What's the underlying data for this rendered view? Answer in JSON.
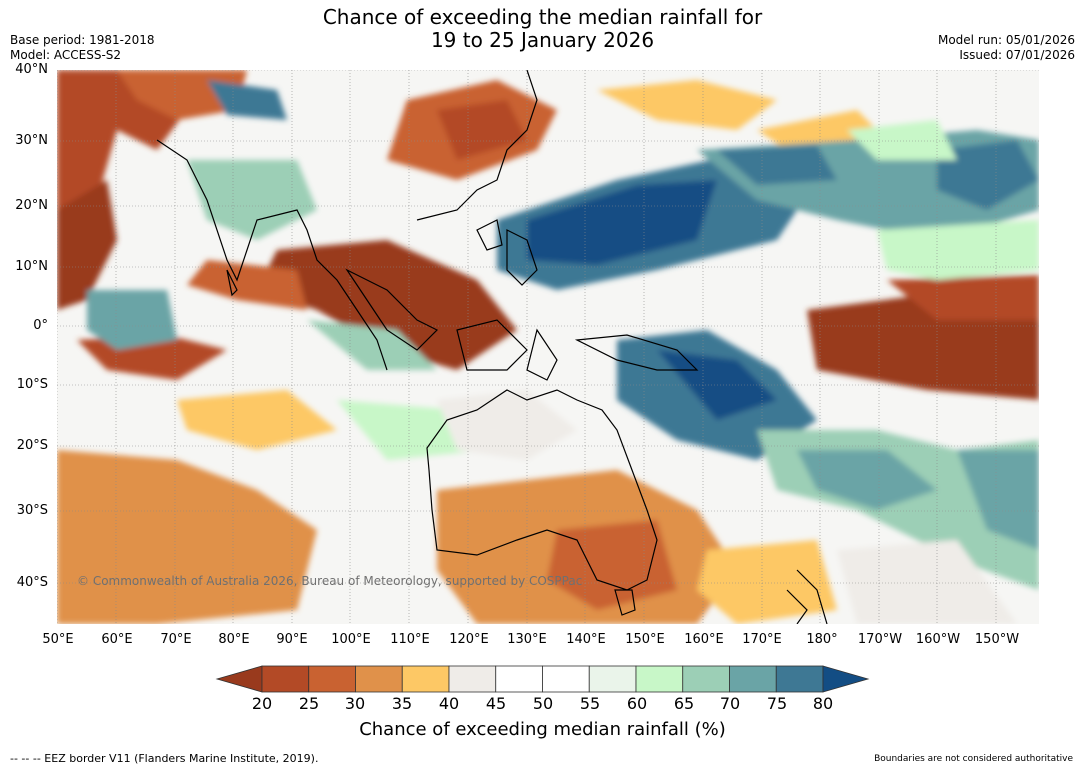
{
  "title": {
    "line1": "Chance of exceeding the median rainfall for",
    "line2": "19 to 25 January 2026"
  },
  "meta": {
    "base_period": "Base period: 1981-2018",
    "model": "Model: ACCESS-S2",
    "model_run": "Model run: 05/01/2026",
    "issued": "Issued: 07/01/2026"
  },
  "map": {
    "lat_labels": [
      "40°N",
      "30°N",
      "20°N",
      "10°N",
      "0°",
      "10°S",
      "20°S",
      "30°S",
      "40°S"
    ],
    "lon_labels": [
      "50°E",
      "60°E",
      "70°E",
      "80°E",
      "90°E",
      "100°E",
      "110°E",
      "120°E",
      "130°E",
      "140°E",
      "150°E",
      "160°E",
      "170°E",
      "180°",
      "170°W",
      "160°W",
      "150°W"
    ],
    "copyright": "© Commonwealth of Australia 2026, Bureau of Meteorology, supported by COSPPac"
  },
  "colorbar": {
    "title": "Chance of exceeding median rainfall (%)",
    "ticks": [
      "20",
      "25",
      "30",
      "35",
      "40",
      "45",
      "50",
      "55",
      "60",
      "65",
      "70",
      "75",
      "80"
    ],
    "colors": [
      "#993a1d",
      "#b34a26",
      "#c96231",
      "#e0914a",
      "#fdc865",
      "#efece8",
      "#ffffff",
      "#ffffff",
      "#eaf4ea",
      "#c8f7c8",
      "#9ccfb6",
      "#6aa4a6",
      "#3e7894",
      "#134d84"
    ]
  },
  "footer": {
    "eez": "--  --  -- EEZ border V11 (Flanders Marine Institute, 2019).",
    "boundaries": "Boundaries are not considered authoritative"
  }
}
